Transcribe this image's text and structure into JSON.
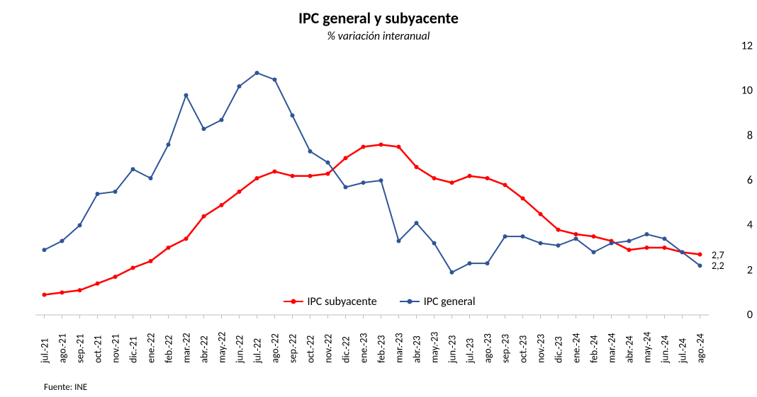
{
  "title": "IPC general y subyacente",
  "subtitle": "% variación interanual",
  "source": "Fuente: INE",
  "background_color": "#ffffff",
  "text_color": "#000000",
  "title_fontsize": 22,
  "subtitle_fontsize": 16,
  "axis_fontsize": 16,
  "x_label_fontsize": 14,
  "plot": {
    "type": "line",
    "ylim": [
      0,
      12
    ],
    "ytick_step": 2,
    "yticks": [
      0,
      2,
      4,
      6,
      8,
      10,
      12
    ],
    "y_axis_side": "right",
    "categories": [
      "jul.-21",
      "ago.-21",
      "sep.-21",
      "oct.-21",
      "nov.-21",
      "dic.-21",
      "ene.-22",
      "feb.-22",
      "mar.-22",
      "abr.-22",
      "may.-22",
      "jun.-22",
      "jul.-22",
      "ago.-22",
      "sep.-22",
      "oct.-22",
      "nov.-22",
      "dic.-22",
      "ene.-23",
      "feb.-23",
      "mar.-23",
      "abr.-23",
      "may.-23",
      "jun.-23",
      "jul.-23",
      "ago.-23",
      "sep.-23",
      "oct.-23",
      "nov.-23",
      "dic.-23",
      "ene.-24",
      "feb.-24",
      "mar.-24",
      "abr.-24",
      "may.-24",
      "jun.-24",
      "jul.-24",
      "ago.-24"
    ],
    "x_label_rotation": -90,
    "series": [
      {
        "name": "IPC subyacente",
        "color": "#ff0000",
        "line_width": 2.5,
        "marker": "circle",
        "marker_size": 4,
        "values": [
          0.9,
          1.0,
          1.1,
          1.4,
          1.7,
          2.1,
          2.4,
          3.0,
          3.4,
          4.4,
          4.9,
          5.5,
          6.1,
          6.4,
          6.2,
          6.2,
          6.3,
          7.0,
          7.5,
          7.6,
          7.5,
          6.6,
          6.1,
          5.9,
          6.2,
          6.1,
          5.8,
          5.2,
          4.5,
          3.8,
          3.6,
          3.5,
          3.3,
          2.9,
          3.0,
          3.0,
          2.8,
          2.7
        ]
      },
      {
        "name": "IPC general",
        "color": "#2f5597",
        "line_width": 2,
        "marker": "circle",
        "marker_size": 4,
        "values": [
          2.9,
          3.3,
          4.0,
          5.4,
          5.5,
          6.5,
          6.1,
          7.6,
          9.8,
          8.3,
          8.7,
          10.2,
          10.8,
          10.5,
          8.9,
          7.3,
          6.8,
          5.7,
          5.9,
          6.0,
          3.3,
          4.1,
          3.2,
          1.9,
          2.3,
          2.3,
          3.5,
          3.5,
          3.2,
          3.1,
          3.4,
          2.8,
          3.2,
          3.3,
          3.6,
          3.4,
          2.8,
          2.2
        ]
      }
    ],
    "legend": {
      "position": "bottom-inside",
      "items": [
        "IPC subyacente",
        "IPC general"
      ]
    },
    "end_labels": [
      {
        "series": "IPC subyacente",
        "text": "2,7",
        "color": "#000000"
      },
      {
        "series": "IPC general",
        "text": "2,2",
        "color": "#000000"
      }
    ]
  }
}
